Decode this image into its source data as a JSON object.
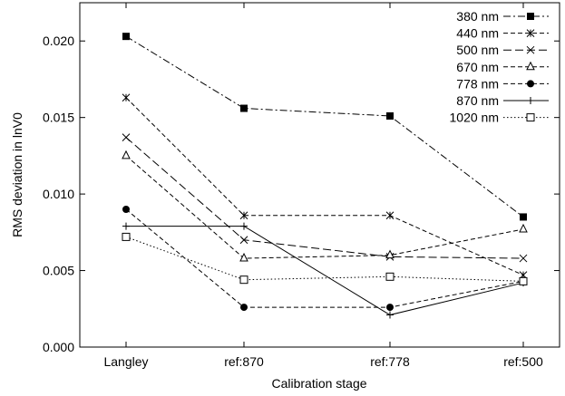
{
  "chart_data": {
    "type": "line",
    "title": "",
    "xlabel": "Calibration stage",
    "ylabel": "RMS deviation in lnV0",
    "categories": [
      "Langley",
      "ref:870",
      "ref:778",
      "ref:500"
    ],
    "ylim": [
      0.0,
      0.0225
    ],
    "yticks": [
      "0.000",
      "0.005",
      "0.010",
      "0.015",
      "0.020"
    ],
    "yticks_values": [
      0.0,
      0.005,
      0.01,
      0.015,
      0.02
    ],
    "legend_position": "top-right",
    "grid": false,
    "series": [
      {
        "name": "380 nm",
        "values": [
          0.0203,
          0.0156,
          0.0151,
          0.0085
        ],
        "marker": "filled-square",
        "dash": "dashdot"
      },
      {
        "name": "440 nm",
        "values": [
          0.0163,
          0.0086,
          0.0086,
          0.0047
        ],
        "marker": "asterisk",
        "dash": "dashed"
      },
      {
        "name": "500 nm",
        "values": [
          0.0137,
          0.007,
          0.0059,
          0.0058
        ],
        "marker": "x",
        "dash": "longdash"
      },
      {
        "name": "670 nm",
        "values": [
          0.0125,
          0.0058,
          0.006,
          0.0077
        ],
        "marker": "triangle",
        "dash": "dashed"
      },
      {
        "name": "778 nm",
        "values": [
          0.009,
          0.0026,
          0.0026,
          0.0043
        ],
        "marker": "filled-circle",
        "dash": "dashed"
      },
      {
        "name": "870 nm",
        "values": [
          0.0079,
          0.0079,
          0.0021,
          0.0042
        ],
        "marker": "plus",
        "dash": "solid"
      },
      {
        "name": "1020 nm",
        "values": [
          0.0072,
          0.0044,
          0.0046,
          0.0043
        ],
        "marker": "open-square",
        "dash": "dotted"
      }
    ]
  }
}
